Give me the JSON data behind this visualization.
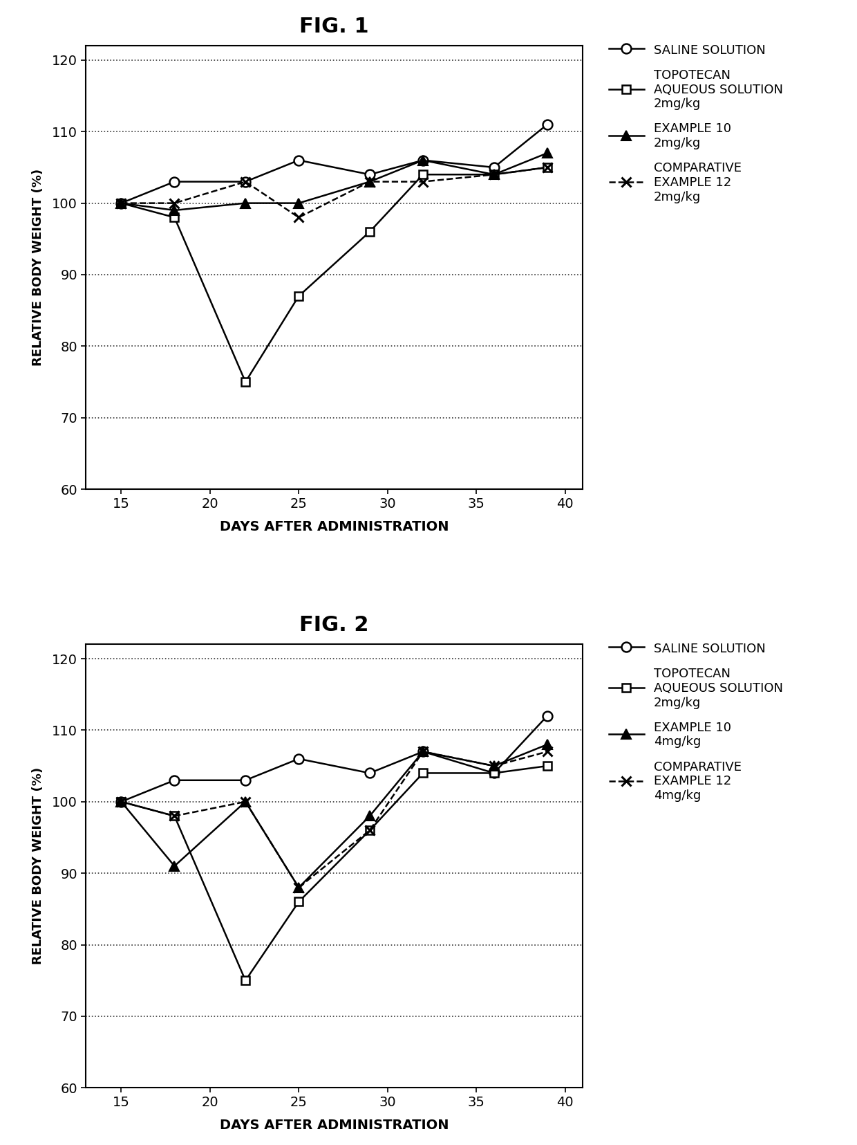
{
  "fig1": {
    "title": "FIG. 1",
    "x": [
      15,
      18,
      22,
      25,
      29,
      32,
      36,
      39
    ],
    "saline": [
      100,
      103,
      103,
      106,
      104,
      106,
      105,
      111
    ],
    "topotecan": [
      100,
      98,
      75,
      87,
      96,
      104,
      104,
      105
    ],
    "example10": [
      100,
      99,
      100,
      100,
      103,
      106,
      104,
      107
    ],
    "comp12": [
      100,
      100,
      103,
      98,
      103,
      103,
      104,
      105
    ],
    "legend": [
      "SALINE SOLUTION",
      "TOPOTECAN\nAQUEOUS SOLUTION\n2mg/kg",
      "EXAMPLE 10\n2mg/kg",
      "COMPARATIVE\nEXAMPLE 12\n2mg/kg"
    ]
  },
  "fig2": {
    "title": "FIG. 2",
    "x": [
      15,
      18,
      22,
      25,
      29,
      32,
      36,
      39
    ],
    "saline": [
      100,
      103,
      103,
      106,
      104,
      107,
      104,
      112
    ],
    "topotecan": [
      100,
      98,
      75,
      86,
      96,
      104,
      104,
      105
    ],
    "example10": [
      100,
      91,
      100,
      88,
      98,
      107,
      105,
      108
    ],
    "comp12": [
      100,
      98,
      100,
      88,
      96,
      107,
      105,
      107
    ],
    "legend": [
      "SALINE SOLUTION",
      "TOPOTECAN\nAQUEOUS SOLUTION\n2mg/kg",
      "EXAMPLE 10\n4mg/kg",
      "COMPARATIVE\nEXAMPLE 12\n4mg/kg"
    ]
  },
  "xlabel": "DAYS AFTER ADMINISTRATION",
  "ylabel": "RELATIVE BODY WEIGHT (%)",
  "ylim": [
    60,
    122
  ],
  "xlim": [
    13,
    41
  ],
  "yticks": [
    60,
    70,
    80,
    90,
    100,
    110,
    120
  ],
  "xticks": [
    15,
    20,
    25,
    30,
    35,
    40
  ],
  "bg_color": "#ffffff"
}
